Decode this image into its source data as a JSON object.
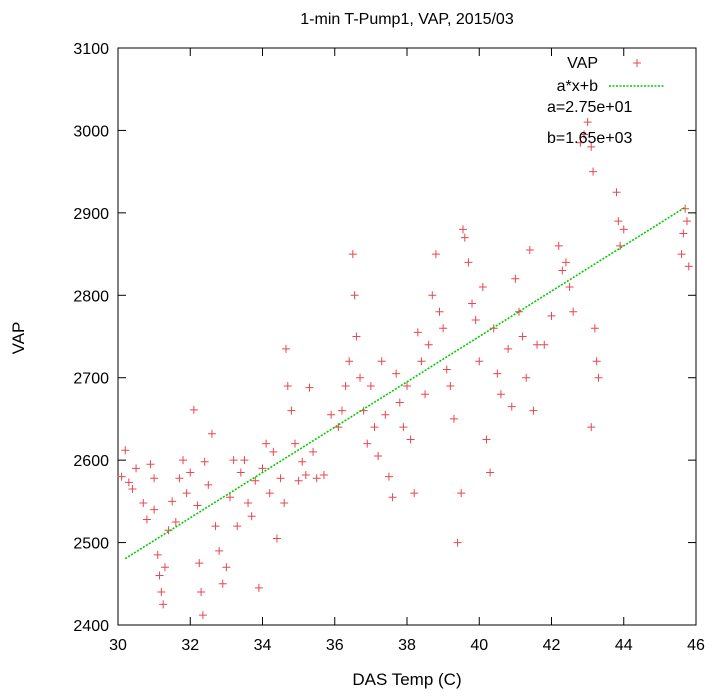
{
  "chart_data": {
    "type": "scatter",
    "title": "1-min T-Pump1, VAP, 2015/03",
    "xlabel": "DAS Temp (C)",
    "ylabel": "VAP",
    "xlim": [
      30,
      46
    ],
    "ylim": [
      2400,
      3100
    ],
    "x_ticks": [
      "30",
      "32",
      "34",
      "36",
      "38",
      "40",
      "42",
      "44",
      "46"
    ],
    "y_ticks": [
      "2400",
      "2500",
      "2600",
      "2700",
      "2800",
      "2900",
      "3000",
      "3100"
    ],
    "grid": false,
    "legend_position": "top-right",
    "series": [
      {
        "name": "VAP",
        "marker": "plus",
        "color": "#e8474f",
        "points": [
          [
            30.1,
            2580
          ],
          [
            30.2,
            2612
          ],
          [
            30.3,
            2573
          ],
          [
            30.4,
            2565
          ],
          [
            30.5,
            2590
          ],
          [
            30.7,
            2548
          ],
          [
            30.8,
            2528
          ],
          [
            30.9,
            2595
          ],
          [
            31.0,
            2578
          ],
          [
            31.0,
            2540
          ],
          [
            31.1,
            2485
          ],
          [
            31.15,
            2460
          ],
          [
            31.2,
            2440
          ],
          [
            31.25,
            2425
          ],
          [
            31.3,
            2470
          ],
          [
            31.4,
            2515
          ],
          [
            31.5,
            2550
          ],
          [
            31.6,
            2525
          ],
          [
            31.7,
            2578
          ],
          [
            31.8,
            2600
          ],
          [
            31.9,
            2560
          ],
          [
            32.0,
            2585
          ],
          [
            32.1,
            2661
          ],
          [
            32.2,
            2545
          ],
          [
            32.25,
            2475
          ],
          [
            32.3,
            2440
          ],
          [
            32.35,
            2412
          ],
          [
            32.4,
            2598
          ],
          [
            32.5,
            2570
          ],
          [
            32.6,
            2632
          ],
          [
            32.7,
            2520
          ],
          [
            32.8,
            2490
          ],
          [
            32.9,
            2450
          ],
          [
            33.0,
            2470
          ],
          [
            33.1,
            2555
          ],
          [
            33.2,
            2600
          ],
          [
            33.3,
            2520
          ],
          [
            33.4,
            2585
          ],
          [
            33.5,
            2600
          ],
          [
            33.6,
            2548
          ],
          [
            33.7,
            2532
          ],
          [
            33.8,
            2575
          ],
          [
            33.9,
            2445
          ],
          [
            34.0,
            2590
          ],
          [
            34.1,
            2620
          ],
          [
            34.2,
            2560
          ],
          [
            34.3,
            2610
          ],
          [
            34.4,
            2505
          ],
          [
            34.5,
            2578
          ],
          [
            34.6,
            2548
          ],
          [
            34.65,
            2735
          ],
          [
            34.7,
            2690
          ],
          [
            34.8,
            2660
          ],
          [
            34.9,
            2620
          ],
          [
            35.0,
            2575
          ],
          [
            35.1,
            2598
          ],
          [
            35.2,
            2582
          ],
          [
            35.3,
            2688
          ],
          [
            35.4,
            2610
          ],
          [
            35.5,
            2578
          ],
          [
            35.7,
            2582
          ],
          [
            35.9,
            2655
          ],
          [
            36.1,
            2640
          ],
          [
            36.2,
            2660
          ],
          [
            36.3,
            2690
          ],
          [
            36.4,
            2720
          ],
          [
            36.5,
            2850
          ],
          [
            36.55,
            2800
          ],
          [
            36.6,
            2750
          ],
          [
            36.7,
            2700
          ],
          [
            36.8,
            2660
          ],
          [
            36.9,
            2620
          ],
          [
            37.0,
            2690
          ],
          [
            37.1,
            2640
          ],
          [
            37.2,
            2605
          ],
          [
            37.3,
            2720
          ],
          [
            37.4,
            2655
          ],
          [
            37.5,
            2580
          ],
          [
            37.6,
            2555
          ],
          [
            37.7,
            2705
          ],
          [
            37.8,
            2670
          ],
          [
            37.9,
            2640
          ],
          [
            38.0,
            2690
          ],
          [
            38.1,
            2625
          ],
          [
            38.2,
            2560
          ],
          [
            38.3,
            2755
          ],
          [
            38.4,
            2720
          ],
          [
            38.5,
            2680
          ],
          [
            38.6,
            2740
          ],
          [
            38.7,
            2800
          ],
          [
            38.8,
            2850
          ],
          [
            38.9,
            2780
          ],
          [
            39.0,
            2760
          ],
          [
            39.1,
            2710
          ],
          [
            39.2,
            2690
          ],
          [
            39.3,
            2650
          ],
          [
            39.4,
            2500
          ],
          [
            39.5,
            2560
          ],
          [
            39.55,
            2880
          ],
          [
            39.6,
            2870
          ],
          [
            39.7,
            2840
          ],
          [
            39.8,
            2790
          ],
          [
            39.9,
            2770
          ],
          [
            40.0,
            2720
          ],
          [
            40.1,
            2810
          ],
          [
            40.2,
            2625
          ],
          [
            40.3,
            2585
          ],
          [
            40.4,
            2760
          ],
          [
            40.5,
            2705
          ],
          [
            40.6,
            2680
          ],
          [
            40.8,
            2735
          ],
          [
            40.9,
            2665
          ],
          [
            41.0,
            2820
          ],
          [
            41.1,
            2780
          ],
          [
            41.2,
            2750
          ],
          [
            41.3,
            2700
          ],
          [
            41.4,
            2855
          ],
          [
            41.5,
            2660
          ],
          [
            41.6,
            2740
          ],
          [
            41.8,
            2740
          ],
          [
            42.0,
            2775
          ],
          [
            42.2,
            2860
          ],
          [
            42.3,
            2830
          ],
          [
            42.4,
            2840
          ],
          [
            42.5,
            2810
          ],
          [
            42.6,
            2780
          ],
          [
            42.8,
            2985
          ],
          [
            42.9,
            2995
          ],
          [
            43.0,
            3010
          ],
          [
            43.1,
            2980
          ],
          [
            43.15,
            2950
          ],
          [
            43.2,
            2760
          ],
          [
            43.25,
            2720
          ],
          [
            43.3,
            2700
          ],
          [
            43.1,
            2640
          ],
          [
            43.8,
            2925
          ],
          [
            43.85,
            2890
          ],
          [
            43.9,
            2860
          ],
          [
            44.0,
            2880
          ],
          [
            45.6,
            2850
          ],
          [
            45.65,
            2875
          ],
          [
            45.7,
            2905
          ],
          [
            45.75,
            2890
          ],
          [
            45.8,
            2835
          ]
        ]
      },
      {
        "name": "a*x+b",
        "type": "line",
        "color": "#00cc00",
        "slope": 27.5,
        "intercept": 1650,
        "x_range": [
          30.2,
          45.7
        ]
      }
    ],
    "annotations": [
      "a=2.75e+01",
      "b=1.65e+03"
    ]
  }
}
